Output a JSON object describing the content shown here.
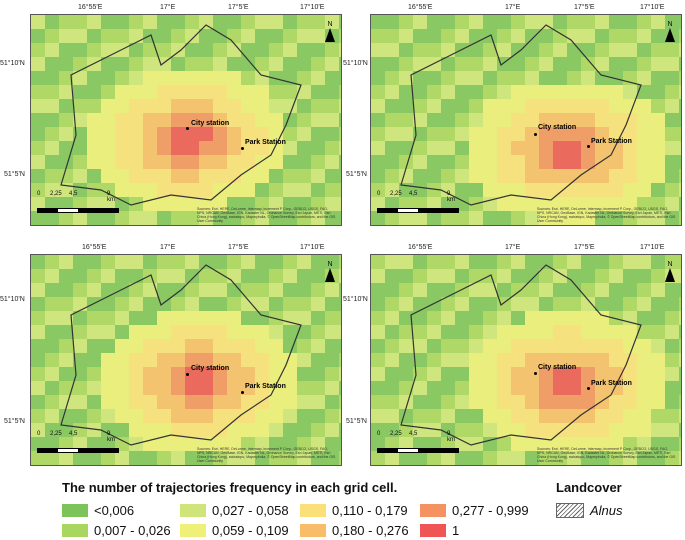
{
  "panels": [
    {
      "lon_ticks": [
        "16°55'E",
        "17°E",
        "17°5'E",
        "17°10'E"
      ],
      "lat_ticks": [
        "51°10'N",
        "51°5'N"
      ],
      "station_a": "City station",
      "station_b": "Park Station",
      "scale_labels": [
        "0",
        "2,25",
        "4,5",
        "9 km"
      ],
      "north": "N",
      "credit": "Sources: Esri, HERE, DeLorme, Intermap, increment P Corp., GEBCO, USGS, FAO, NPS, NRCAN, GeoBase, IGN, Kadaster NL, Ordnance Survey, Esri Japan, METI, Esri China (Hong Kong), swisstopo, MapmyIndia, © OpenStreetMap contributors, and the GIS User Community"
    },
    {
      "lon_ticks": [
        "16°55'E",
        "17°E",
        "17°5'E",
        "17°10'E"
      ],
      "lat_ticks": [
        "51°10'N",
        "51°5'N"
      ],
      "station_a": "City station",
      "station_b": "Park Station",
      "scale_labels": [
        "0",
        "2,25",
        "4,5",
        "9 km"
      ],
      "north": "N",
      "credit": "Sources: Esri, HERE, DeLorme, Intermap, increment P Corp., GEBCO, USGS, FAO, NPS, NRCAN, GeoBase, IGN, Kadaster NL, Ordnance Survey, Esri Japan, METI, Esri China (Hong Kong), swisstopo, MapmyIndia, © OpenStreetMap contributors, and the GIS User Community"
    },
    {
      "lon_ticks": [
        "16°55'E",
        "17°E",
        "17°5'E",
        "17°10'E"
      ],
      "lat_ticks": [
        "51°10'N",
        "51°5'N"
      ],
      "station_a": "City station",
      "station_b": "Park Station",
      "scale_labels": [
        "0",
        "2,25",
        "4,5",
        "9 km"
      ],
      "north": "N",
      "credit": "Sources: Esri, HERE, DeLorme, Intermap, increment P Corp., GEBCO, USGS, FAO, NPS, NRCAN, GeoBase, IGN, Kadaster NL, Ordnance Survey, Esri Japan, METI, Esri China (Hong Kong), swisstopo, MapmyIndia, © OpenStreetMap contributors, and the GIS User Community"
    },
    {
      "lon_ticks": [
        "16°55'E",
        "17°E",
        "17°5'E",
        "17°10'E"
      ],
      "lat_ticks": [
        "51°10'N",
        "51°5'N"
      ],
      "station_a": "City station",
      "station_b": "Park Station",
      "scale_labels": [
        "0",
        "2,25",
        "4,5",
        "9 km"
      ],
      "north": "N",
      "credit": "Sources: Esri, HERE, DeLorme, Intermap, increment P Corp., GEBCO, USGS, FAO, NPS, NRCAN, GeoBase, IGN, Kadaster NL, Ordnance Survey, Esri Japan, METI, Esri China (Hong Kong), swisstopo, MapmyIndia, © OpenStreetMap contributors, and the GIS User Community"
    }
  ],
  "legend": {
    "title": "The number of trajectories frequency in each grid cell.",
    "classes": [
      {
        "label": "<0,006",
        "color": "#7cc35a"
      },
      {
        "label": "0,007 - 0,026",
        "color": "#a9d65f"
      },
      {
        "label": "0,027 - 0,058",
        "color": "#cfe57a"
      },
      {
        "label": "0,059 - 0,109",
        "color": "#eef07a"
      },
      {
        "label": "0,110 - 0,179",
        "color": "#fbe07a"
      },
      {
        "label": "0,180 - 0,276",
        "color": "#f9bd6a"
      },
      {
        "label": "0,277 - 0,999",
        "color": "#f59262"
      },
      {
        "label": "1",
        "color": "#ef5555"
      }
    ]
  },
  "landcover": {
    "title": "Landcover",
    "item": "Alnus"
  }
}
